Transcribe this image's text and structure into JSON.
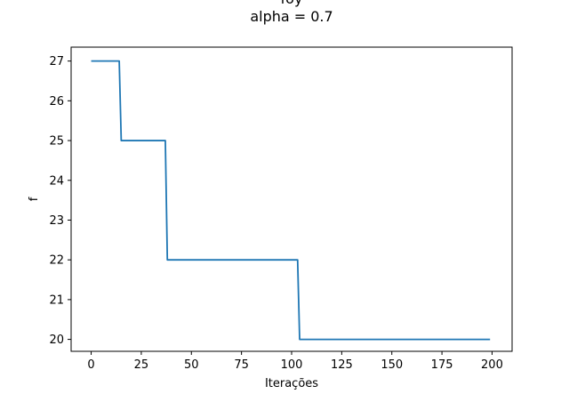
{
  "chart_data": {
    "type": "line",
    "title_line1": "foy",
    "title_line2": "alpha = 0.7",
    "xlabel": "Iterações",
    "ylabel": "f",
    "xlim": [
      -10,
      210
    ],
    "ylim": [
      19.7,
      27.35
    ],
    "xticks": [
      0,
      25,
      50,
      75,
      100,
      125,
      150,
      175,
      200
    ],
    "yticks": [
      20,
      21,
      22,
      23,
      24,
      25,
      26,
      27
    ],
    "grid": false,
    "series": [
      {
        "color": "#1f77b4",
        "x": [
          0,
          14,
          15,
          37,
          38,
          103,
          104,
          199
        ],
        "y": [
          27,
          27,
          25,
          25,
          22,
          22,
          20,
          20
        ]
      }
    ]
  }
}
